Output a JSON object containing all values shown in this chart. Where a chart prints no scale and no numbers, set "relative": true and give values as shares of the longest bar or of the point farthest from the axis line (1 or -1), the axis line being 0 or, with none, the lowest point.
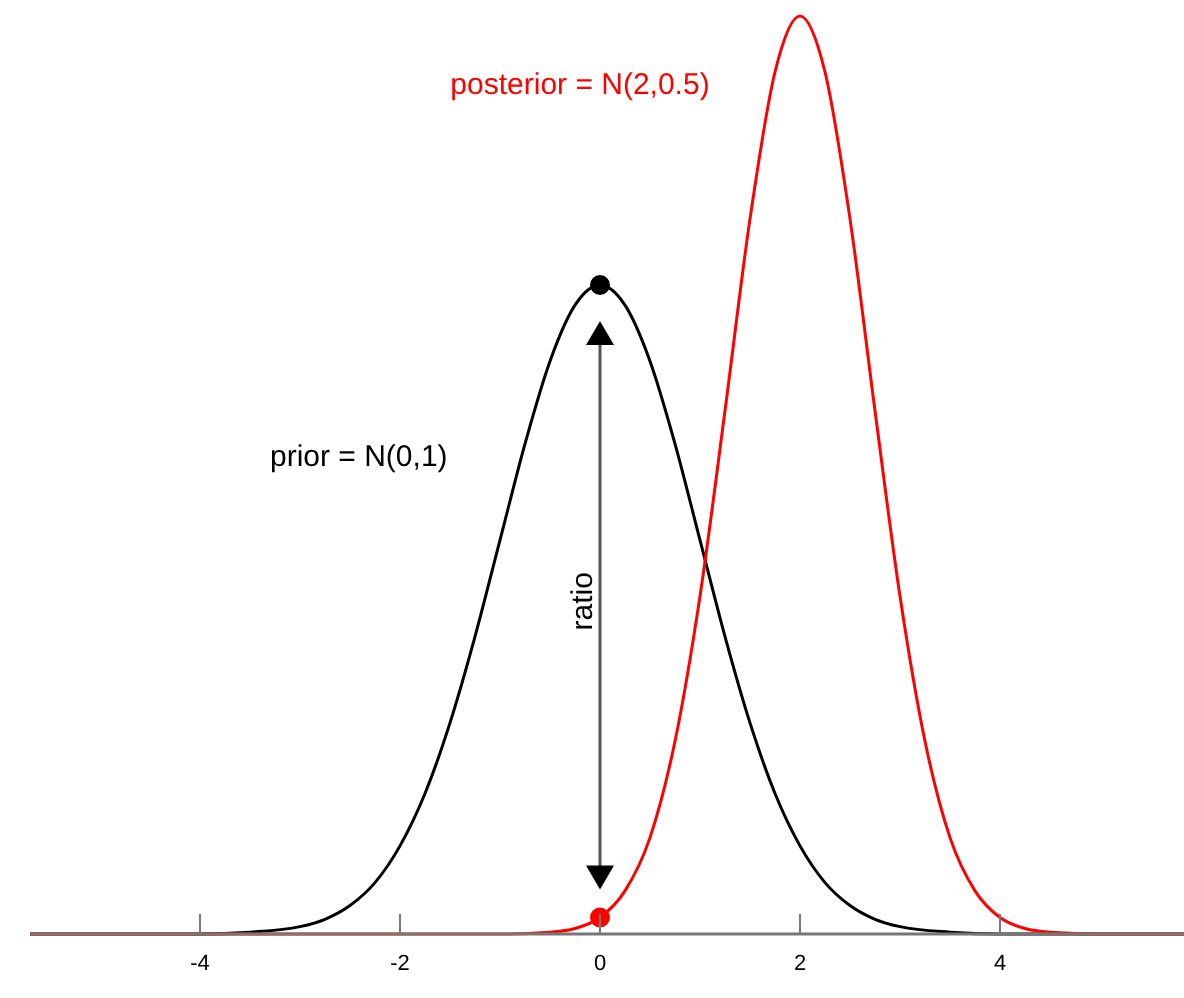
{
  "chart_data": {
    "type": "line",
    "relative": true,
    "xlim": [
      -5.7,
      5.84
    ],
    "xticks": [
      -4,
      -2,
      0,
      2,
      4
    ],
    "grid": false,
    "marker": "none",
    "line_style": "solid",
    "series": [
      {
        "name": "prior = N(0,1)",
        "color": "#000000",
        "x": [
          -5.7,
          -4,
          -3.5,
          -3,
          -2.75,
          -2.5,
          -2.25,
          -2,
          -1.75,
          -1.5,
          -1.25,
          -1,
          -0.75,
          -0.5,
          -0.25,
          0,
          0.25,
          0.5,
          0.75,
          1,
          1.25,
          1.5,
          1.75,
          2,
          2.25,
          2.5,
          2.75,
          3,
          3.5,
          4,
          5.84
        ],
        "values": [
          0,
          0,
          0.002,
          0.008,
          0.016,
          0.031,
          0.056,
          0.096,
          0.153,
          0.23,
          0.324,
          0.429,
          0.534,
          0.624,
          0.685,
          0.707,
          0.685,
          0.624,
          0.534,
          0.429,
          0.324,
          0.23,
          0.153,
          0.096,
          0.056,
          0.031,
          0.016,
          0.008,
          0.002,
          0,
          0
        ]
      },
      {
        "name": "posterior = N(2,0.5)",
        "color": "#ff0000",
        "x": [
          -5.7,
          -1,
          -0.5,
          -0.25,
          0,
          0.25,
          0.5,
          0.75,
          1,
          1.25,
          1.5,
          1.75,
          2,
          2.25,
          2.5,
          2.75,
          3,
          3.25,
          3.5,
          3.75,
          4,
          4.25,
          4.5,
          5,
          5.84
        ],
        "values": [
          0,
          0,
          0.002,
          0.006,
          0.018,
          0.047,
          0.105,
          0.21,
          0.368,
          0.57,
          0.779,
          0.939,
          1,
          0.939,
          0.779,
          0.57,
          0.368,
          0.21,
          0.105,
          0.047,
          0.018,
          0.006,
          0.002,
          0,
          0
        ]
      },
      {
        "type": "scatter",
        "marker": "circle",
        "color": "#000000",
        "x": [
          0
        ],
        "values": [
          0.707
        ]
      },
      {
        "type": "scatter",
        "marker": "circle",
        "color": "#ff0000",
        "x": [
          0
        ],
        "values": [
          0.018
        ]
      }
    ],
    "annotations": [
      "ratio"
    ]
  }
}
